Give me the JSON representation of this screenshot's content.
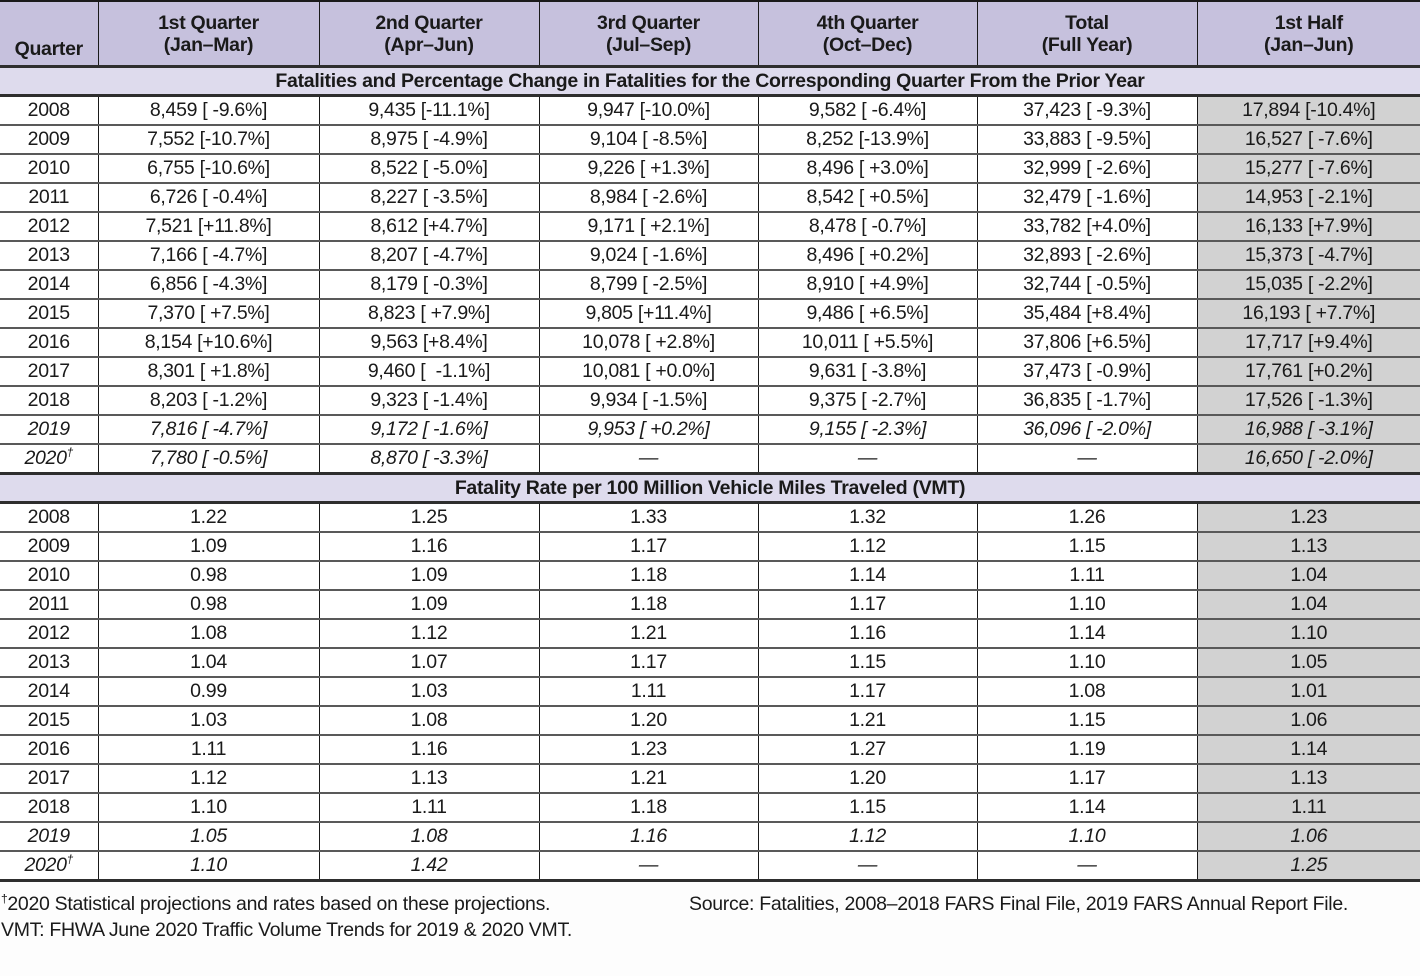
{
  "table": {
    "dagger_symbol": "†",
    "columns": [
      {
        "line1": "Quarter",
        "line2": ""
      },
      {
        "line1": "1st Quarter",
        "line2": "(Jan–Mar)"
      },
      {
        "line1": "2nd Quarter",
        "line2": "(Apr–Jun)"
      },
      {
        "line1": "3rd Quarter",
        "line2": "(Jul–Sep)"
      },
      {
        "line1": "4th Quarter",
        "line2": "(Oct–Dec)"
      },
      {
        "line1": "Total",
        "line2": "(Full Year)"
      },
      {
        "line1": "1st Half",
        "line2": "(Jan–Jun)"
      }
    ],
    "sections": [
      {
        "title": "Fatalities and Percentage Change in Fatalities for the Corresponding Quarter From the Prior Year",
        "rows": [
          {
            "year": "2008",
            "italic": false,
            "dagger": false,
            "values": [
              "8,459 [ -9.6%]",
              "9,435 [-11.1%]",
              "9,947 [-10.0%]",
              "9,582 [ -6.4%]",
              "37,423 [ -9.3%]",
              "17,894 [-10.4%]"
            ]
          },
          {
            "year": "2009",
            "italic": false,
            "dagger": false,
            "values": [
              "7,552 [-10.7%]",
              "8,975 [ -4.9%]",
              "9,104 [ -8.5%]",
              "8,252 [-13.9%]",
              "33,883 [ -9.5%]",
              "16,527 [ -7.6%]"
            ]
          },
          {
            "year": "2010",
            "italic": false,
            "dagger": false,
            "values": [
              "6,755 [-10.6%]",
              "8,522 [ -5.0%]",
              "9,226 [ +1.3%]",
              "8,496 [ +3.0%]",
              "32,999 [ -2.6%]",
              "15,277 [ -7.6%]"
            ]
          },
          {
            "year": "2011",
            "italic": false,
            "dagger": false,
            "values": [
              "6,726 [ -0.4%]",
              "8,227 [ -3.5%]",
              "8,984 [ -2.6%]",
              "8,542 [ +0.5%]",
              "32,479 [ -1.6%]",
              "14,953 [ -2.1%]"
            ]
          },
          {
            "year": "2012",
            "italic": false,
            "dagger": false,
            "values": [
              "7,521 [+11.8%]",
              "8,612 [+4.7%]",
              "9,171 [ +2.1%]",
              "8,478 [ -0.7%]",
              "33,782 [+4.0%]",
              "16,133 [+7.9%]"
            ]
          },
          {
            "year": "2013",
            "italic": false,
            "dagger": false,
            "values": [
              "7,166 [ -4.7%]",
              "8,207 [ -4.7%]",
              "9,024 [ -1.6%]",
              "8,496 [ +0.2%]",
              "32,893 [ -2.6%]",
              "15,373 [ -4.7%]"
            ]
          },
          {
            "year": "2014",
            "italic": false,
            "dagger": false,
            "values": [
              "6,856 [ -4.3%]",
              "8,179 [ -0.3%]",
              "8,799 [ -2.5%]",
              "8,910 [ +4.9%]",
              "32,744 [ -0.5%]",
              "15,035 [ -2.2%]"
            ]
          },
          {
            "year": "2015",
            "italic": false,
            "dagger": false,
            "values": [
              "7,370 [ +7.5%]",
              "8,823 [ +7.9%]",
              "9,805 [+11.4%]",
              "9,486 [ +6.5%]",
              "35,484 [+8.4%]",
              "16,193 [ +7.7%]"
            ]
          },
          {
            "year": "2016",
            "italic": false,
            "dagger": false,
            "values": [
              "8,154 [+10.6%]",
              "9,563 [+8.4%]",
              "10,078 [ +2.8%]",
              "10,011 [ +5.5%]",
              "37,806 [+6.5%]",
              "17,717 [+9.4%]"
            ]
          },
          {
            "year": "2017",
            "italic": false,
            "dagger": false,
            "values": [
              "8,301 [ +1.8%]",
              "9,460 [  -1.1%]",
              "10,081 [ +0.0%]",
              "9,631 [ -3.8%]",
              "37,473 [ -0.9%]",
              "17,761 [+0.2%]"
            ]
          },
          {
            "year": "2018",
            "italic": false,
            "dagger": false,
            "values": [
              "8,203 [ -1.2%]",
              "9,323 [ -1.4%]",
              "9,934 [ -1.5%]",
              "9,375 [ -2.7%]",
              "36,835 [ -1.7%]",
              "17,526 [ -1.3%]"
            ]
          },
          {
            "year": "2019",
            "italic": true,
            "dagger": false,
            "values": [
              "7,816 [ -4.7%]",
              "9,172 [ -1.6%]",
              "9,953 [ +0.2%]",
              "9,155 [ -2.3%]",
              "36,096 [ -2.0%]",
              "16,988 [ -3.1%]"
            ]
          },
          {
            "year": "2020",
            "italic": true,
            "dagger": true,
            "values": [
              "7,780 [ -0.5%]",
              "8,870 [ -3.3%]",
              "—",
              "—",
              "—",
              "16,650 [ -2.0%]"
            ]
          }
        ]
      },
      {
        "title": "Fatality Rate per 100 Million Vehicle Miles Traveled (VMT)",
        "rows": [
          {
            "year": "2008",
            "italic": false,
            "dagger": false,
            "values": [
              "1.22",
              "1.25",
              "1.33",
              "1.32",
              "1.26",
              "1.23"
            ]
          },
          {
            "year": "2009",
            "italic": false,
            "dagger": false,
            "values": [
              "1.09",
              "1.16",
              "1.17",
              "1.12",
              "1.15",
              "1.13"
            ]
          },
          {
            "year": "2010",
            "italic": false,
            "dagger": false,
            "values": [
              "0.98",
              "1.09",
              "1.18",
              "1.14",
              "1.11",
              "1.04"
            ]
          },
          {
            "year": "2011",
            "italic": false,
            "dagger": false,
            "values": [
              "0.98",
              "1.09",
              "1.18",
              "1.17",
              "1.10",
              "1.04"
            ]
          },
          {
            "year": "2012",
            "italic": false,
            "dagger": false,
            "values": [
              "1.08",
              "1.12",
              "1.21",
              "1.16",
              "1.14",
              "1.10"
            ]
          },
          {
            "year": "2013",
            "italic": false,
            "dagger": false,
            "values": [
              "1.04",
              "1.07",
              "1.17",
              "1.15",
              "1.10",
              "1.05"
            ]
          },
          {
            "year": "2014",
            "italic": false,
            "dagger": false,
            "values": [
              "0.99",
              "1.03",
              "1.11",
              "1.17",
              "1.08",
              "1.01"
            ]
          },
          {
            "year": "2015",
            "italic": false,
            "dagger": false,
            "values": [
              "1.03",
              "1.08",
              "1.20",
              "1.21",
              "1.15",
              "1.06"
            ]
          },
          {
            "year": "2016",
            "italic": false,
            "dagger": false,
            "values": [
              "1.11",
              "1.16",
              "1.23",
              "1.27",
              "1.19",
              "1.14"
            ]
          },
          {
            "year": "2017",
            "italic": false,
            "dagger": false,
            "values": [
              "1.12",
              "1.13",
              "1.21",
              "1.20",
              "1.17",
              "1.13"
            ]
          },
          {
            "year": "2018",
            "italic": false,
            "dagger": false,
            "values": [
              "1.10",
              "1.11",
              "1.18",
              "1.15",
              "1.14",
              "1.11"
            ]
          },
          {
            "year": "2019",
            "italic": true,
            "dagger": false,
            "values": [
              "1.05",
              "1.08",
              "1.16",
              "1.12",
              "1.10",
              "1.06"
            ]
          },
          {
            "year": "2020",
            "italic": true,
            "dagger": true,
            "values": [
              "1.10",
              "1.42",
              "—",
              "—",
              "—",
              "1.25"
            ]
          }
        ]
      }
    ]
  },
  "footnotes": {
    "line1": "2020 Statistical projections and rates based on these projections.",
    "line2": "VMT: FHWA June 2020 Traffic Volume Trends for 2019 & 2020 VMT.",
    "source": "Source: Fatalities, 2008–2018 FARS Final File, 2019 FARS Annual Report File."
  },
  "colors": {
    "header_bg": "#c6c1dd",
    "band_bg": "#dedbed",
    "half_col_bg": "#d2d2d2",
    "grid": "#1a1a1a",
    "row_line": "#595959",
    "thick_line": "#2e2e2e",
    "ink": "#1a1a1a",
    "page_bg": "#fdfdfd"
  }
}
